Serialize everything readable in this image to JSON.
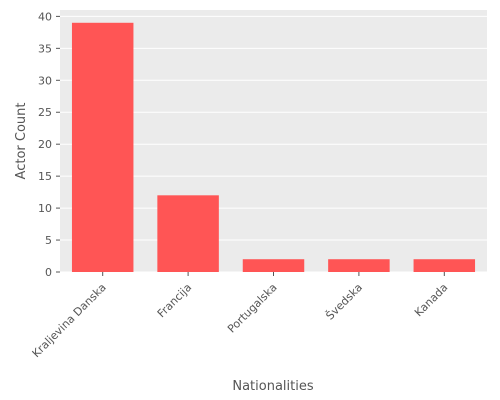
{
  "chart_data": {
    "type": "bar",
    "categories": [
      "Kraljevina Danska",
      "Francija",
      "Portugalska",
      "Švedska",
      "Kanada"
    ],
    "values": [
      39,
      12,
      2,
      2,
      2
    ],
    "xlabel": "Nationalities",
    "ylabel": "Actor Count",
    "ylim": [
      0,
      41
    ],
    "yticks": [
      0,
      5,
      10,
      15,
      20,
      25,
      30,
      35,
      40
    ],
    "grid": true,
    "bar_color": "#ff5555",
    "background_color": "#ebebeb",
    "grid_color": "#ffffff"
  }
}
